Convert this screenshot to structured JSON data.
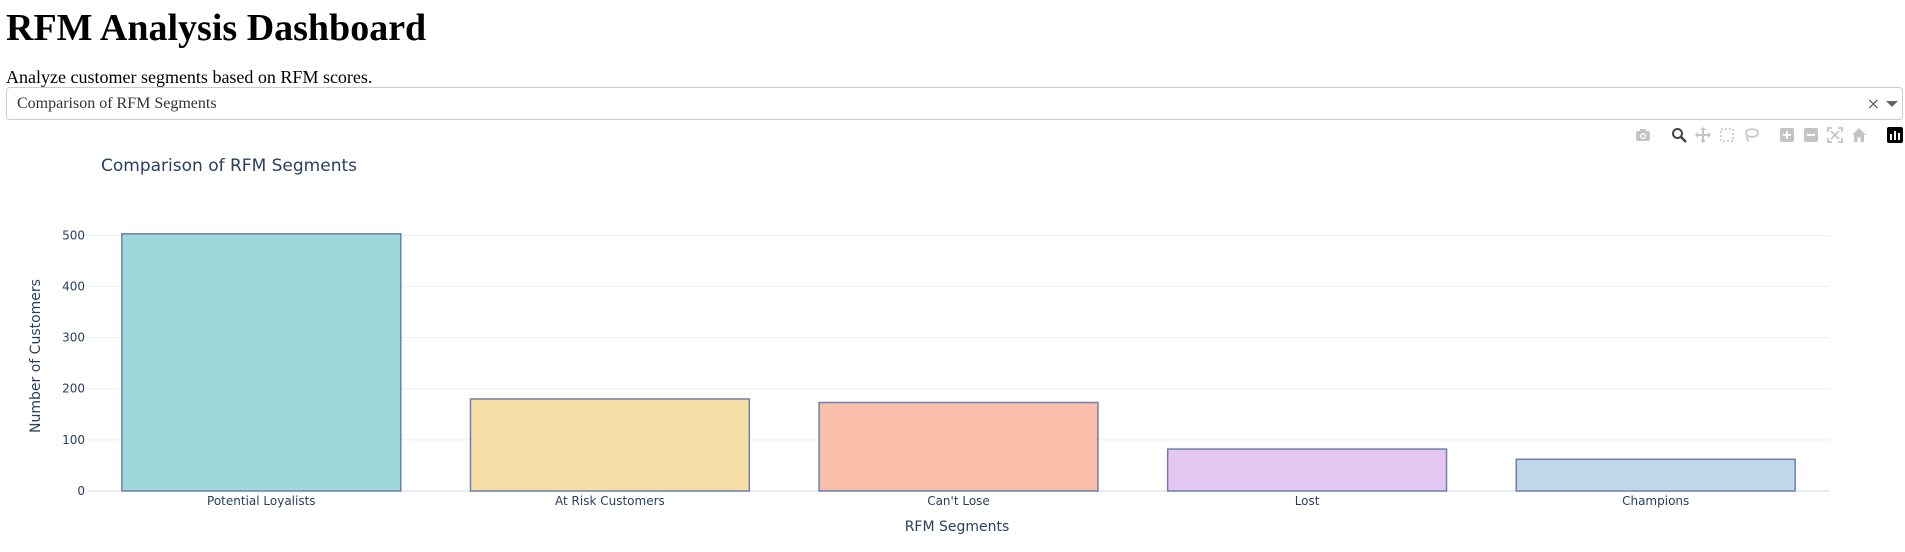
{
  "page": {
    "title": "RFM Analysis Dashboard",
    "description": "Analyze customer segments based on RFM scores."
  },
  "dropdown": {
    "selected": "Comparison of RFM Segments",
    "clear_symbol": "×"
  },
  "modebar": {
    "icons": [
      "camera-icon",
      "zoom-icon",
      "pan-icon",
      "box-select-icon",
      "lasso-select-icon",
      "zoom-in-icon",
      "zoom-out-icon",
      "autoscale-icon",
      "reset-axes-icon",
      "plotly-logo-icon"
    ]
  },
  "chart_data": {
    "type": "bar",
    "title": "Comparison of RFM Segments",
    "xlabel": "RFM Segments",
    "ylabel": "Number of Customers",
    "categories": [
      "Potential Loyalists",
      "At Risk Customers",
      "Can't Lose",
      "Lost",
      "Champions"
    ],
    "values": [
      503,
      180,
      173,
      82,
      62
    ],
    "ylim": [
      0,
      530
    ],
    "yticks": [
      0,
      100,
      200,
      300,
      400,
      500
    ],
    "grid": true,
    "colors": [
      "#8fd0d5",
      "#f5d898",
      "#f8b49b",
      "#dfbcf0",
      "#b4d1e8"
    ],
    "bar_edge_color": "#6e7fa8"
  }
}
